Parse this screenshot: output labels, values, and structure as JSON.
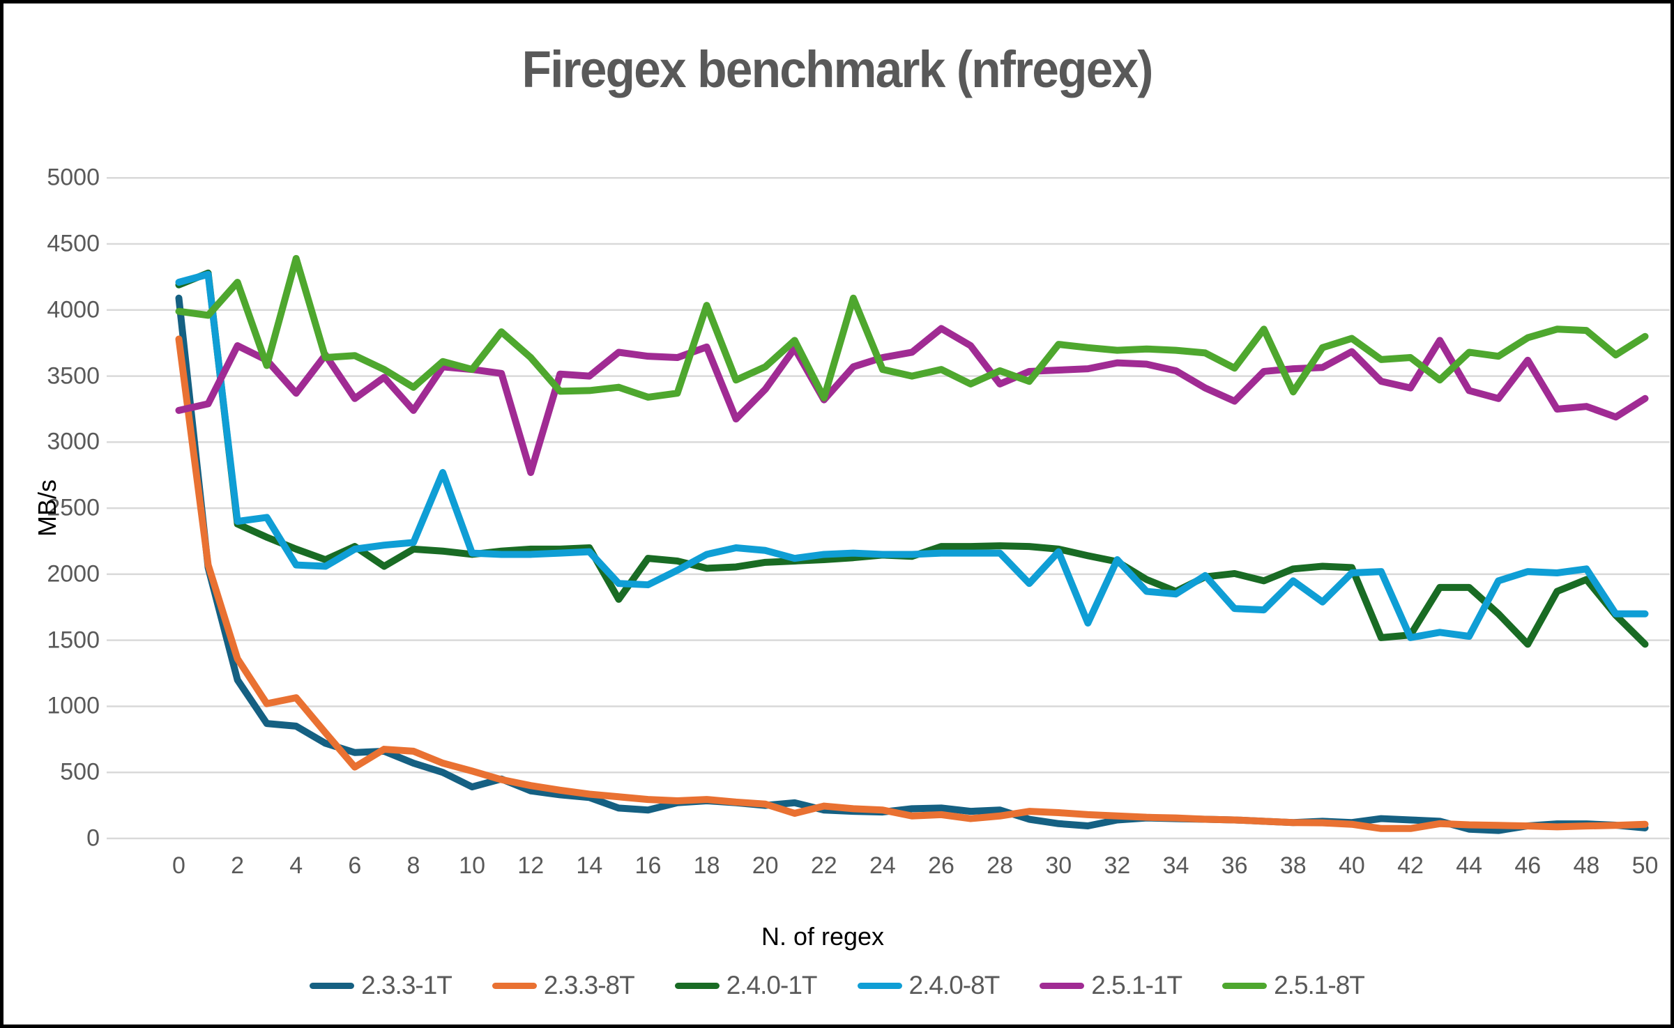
{
  "window": {
    "background": "#FFFFFF",
    "frame_color": "#000000"
  },
  "header": {
    "title": "Firegex benchmark (nfregex)",
    "title_color": "#595959"
  },
  "axes": {
    "y_title": "MB/s",
    "x_title": "N. of regex",
    "y_tick_labels": [
      "0",
      "500",
      "1000",
      "1500",
      "2000",
      "2500",
      "3000",
      "3500",
      "4000",
      "4500",
      "5000"
    ],
    "x_tick_labels": [
      "0",
      "2",
      "4",
      "6",
      "8",
      "10",
      "12",
      "14",
      "16",
      "18",
      "20",
      "22",
      "24",
      "26",
      "28",
      "30",
      "32",
      "34",
      "36",
      "38",
      "40",
      "42",
      "44",
      "46",
      "48",
      "50"
    ],
    "tick_color": "#595959",
    "grid_color": "#D9D9D9"
  },
  "legend": {
    "items": [
      {
        "label": "2.3.3-1T",
        "color": "#156082"
      },
      {
        "label": "2.3.3-8T",
        "color": "#E97132"
      },
      {
        "label": "2.4.0-1T",
        "color": "#196B24"
      },
      {
        "label": "2.4.0-8T",
        "color": "#0F9ED5"
      },
      {
        "label": "2.5.1-1T",
        "color": "#A02B93"
      },
      {
        "label": "2.5.1-8T",
        "color": "#4EA72E"
      }
    ]
  },
  "chart_data": {
    "type": "line",
    "title": "Firegex benchmark (nfregex)",
    "xlabel": "N. of regex",
    "ylabel": "MB/s",
    "xlim": [
      0,
      50
    ],
    "ylim": [
      0,
      5000
    ],
    "y_step": 500,
    "grid": "horizontal",
    "legend_position": "bottom",
    "x": [
      0,
      1,
      2,
      3,
      4,
      5,
      6,
      7,
      8,
      9,
      10,
      11,
      12,
      13,
      14,
      15,
      16,
      17,
      18,
      19,
      20,
      21,
      22,
      23,
      24,
      25,
      26,
      27,
      28,
      29,
      30,
      31,
      32,
      33,
      34,
      35,
      36,
      37,
      38,
      39,
      40,
      41,
      42,
      43,
      44,
      45,
      46,
      47,
      48,
      49,
      50
    ],
    "series": [
      {
        "name": "2.3.3-1T",
        "color": "#156082",
        "values": [
          4090,
          2050,
          1200,
          870,
          850,
          720,
          650,
          660,
          570,
          500,
          390,
          450,
          360,
          330,
          310,
          230,
          215,
          270,
          285,
          270,
          250,
          270,
          215,
          205,
          200,
          225,
          230,
          205,
          215,
          145,
          112,
          95,
          140,
          155,
          150,
          145,
          140,
          130,
          120,
          130,
          120,
          150,
          140,
          130,
          70,
          60,
          95,
          110,
          110,
          100,
          80
        ]
      },
      {
        "name": "2.3.3-8T",
        "color": "#E97132",
        "values": [
          3780,
          2070,
          1360,
          1020,
          1065,
          800,
          540,
          675,
          660,
          570,
          510,
          445,
          400,
          365,
          335,
          315,
          295,
          285,
          295,
          275,
          260,
          190,
          245,
          225,
          215,
          170,
          180,
          150,
          170,
          205,
          195,
          180,
          170,
          160,
          155,
          145,
          140,
          130,
          120,
          118,
          107,
          75,
          75,
          112,
          103,
          99,
          94,
          88,
          94,
          99,
          107
        ]
      },
      {
        "name": "2.4.0-1T",
        "color": "#196B24",
        "values": [
          4190,
          4280,
          2380,
          2280,
          2190,
          2110,
          2210,
          2060,
          2190,
          2175,
          2150,
          2175,
          2190,
          2190,
          2200,
          1810,
          2120,
          2100,
          2045,
          2055,
          2090,
          2100,
          2110,
          2125,
          2145,
          2135,
          2210,
          2210,
          2215,
          2210,
          2190,
          2140,
          2095,
          1960,
          1870,
          1980,
          2005,
          1950,
          2040,
          2060,
          2050,
          1520,
          1540,
          1900,
          1900,
          1700,
          1470,
          1870,
          1960,
          1690,
          1470
        ]
      },
      {
        "name": "2.4.0-8T",
        "color": "#0F9ED5",
        "values": [
          4210,
          4270,
          2400,
          2430,
          2070,
          2060,
          2190,
          2220,
          2240,
          2770,
          2160,
          2150,
          2150,
          2160,
          2170,
          1930,
          1920,
          2030,
          2150,
          2200,
          2180,
          2120,
          2150,
          2160,
          2150,
          2150,
          2160,
          2160,
          2160,
          1930,
          2170,
          1630,
          2110,
          1870,
          1850,
          1990,
          1740,
          1730,
          1950,
          1790,
          2010,
          2020,
          1520,
          1560,
          1530,
          1950,
          2020,
          2010,
          2040,
          1700,
          1700
        ]
      },
      {
        "name": "2.5.1-1T",
        "color": "#A02B93",
        "values": [
          3240,
          3290,
          3730,
          3620,
          3370,
          3660,
          3330,
          3490,
          3240,
          3570,
          3550,
          3520,
          2770,
          3515,
          3500,
          3680,
          3650,
          3640,
          3720,
          3175,
          3400,
          3710,
          3320,
          3570,
          3640,
          3680,
          3860,
          3730,
          3440,
          3535,
          3545,
          3555,
          3600,
          3590,
          3540,
          3410,
          3310,
          3535,
          3555,
          3565,
          3685,
          3460,
          3410,
          3770,
          3390,
          3330,
          3620,
          3250,
          3270,
          3190,
          3330
        ]
      },
      {
        "name": "2.5.1-8T",
        "color": "#4EA72E",
        "values": [
          3990,
          3960,
          4210,
          3580,
          4390,
          3640,
          3655,
          3550,
          3415,
          3610,
          3550,
          3835,
          3640,
          3385,
          3390,
          3415,
          3340,
          3370,
          4035,
          3470,
          3570,
          3770,
          3335,
          4090,
          3550,
          3500,
          3550,
          3440,
          3540,
          3460,
          3740,
          3715,
          3695,
          3705,
          3695,
          3675,
          3560,
          3855,
          3380,
          3715,
          3785,
          3625,
          3640,
          3470,
          3680,
          3650,
          3790,
          3855,
          3845,
          3660,
          3800
        ]
      }
    ]
  }
}
